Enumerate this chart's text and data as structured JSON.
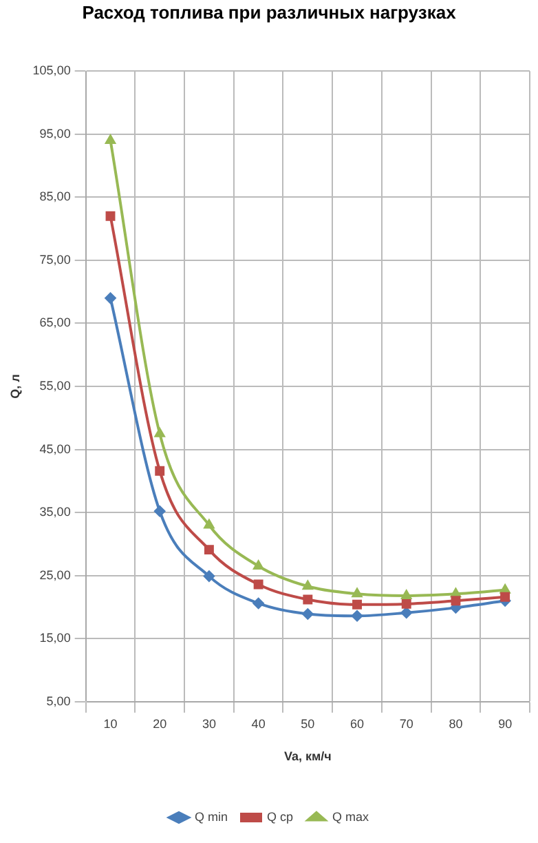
{
  "chart_data": {
    "type": "line",
    "title": "Расход топлива при различных нагрузках",
    "xlabel": "Va, км/ч",
    "ylabel": "Q, л",
    "categories": [
      "10",
      "20",
      "30",
      "40",
      "50",
      "60",
      "70",
      "80",
      "90"
    ],
    "series": [
      {
        "name": "Q min",
        "color": "#4a7ebb",
        "marker": "diamond",
        "values": [
          69.0,
          35.2,
          24.9,
          20.6,
          18.9,
          18.6,
          19.1,
          19.9,
          21.0
        ]
      },
      {
        "name": "Q ср",
        "color": "#be4b48",
        "marker": "square",
        "values": [
          82.0,
          41.6,
          29.1,
          23.6,
          21.2,
          20.4,
          20.5,
          21.0,
          21.6
        ]
      },
      {
        "name": "Q max",
        "color": "#98b954",
        "marker": "triangle",
        "values": [
          94.0,
          47.5,
          33.0,
          26.5,
          23.3,
          22.1,
          21.8,
          22.1,
          22.7
        ]
      }
    ],
    "ylim": [
      5,
      105
    ],
    "yticks": [
      {
        "value": 5,
        "label": "5,00"
      },
      {
        "value": 15,
        "label": "15,00"
      },
      {
        "value": 25,
        "label": "25,00"
      },
      {
        "value": 35,
        "label": "35,00"
      },
      {
        "value": 45,
        "label": "45,00"
      },
      {
        "value": 55,
        "label": "55,00"
      },
      {
        "value": 65,
        "label": "65,00"
      },
      {
        "value": 75,
        "label": "75,00"
      },
      {
        "value": 85,
        "label": "85,00"
      },
      {
        "value": 95,
        "label": "95,00"
      },
      {
        "value": 105,
        "label": "105,00"
      }
    ],
    "grid": true,
    "legend": "bottom",
    "line_style": "solid"
  }
}
